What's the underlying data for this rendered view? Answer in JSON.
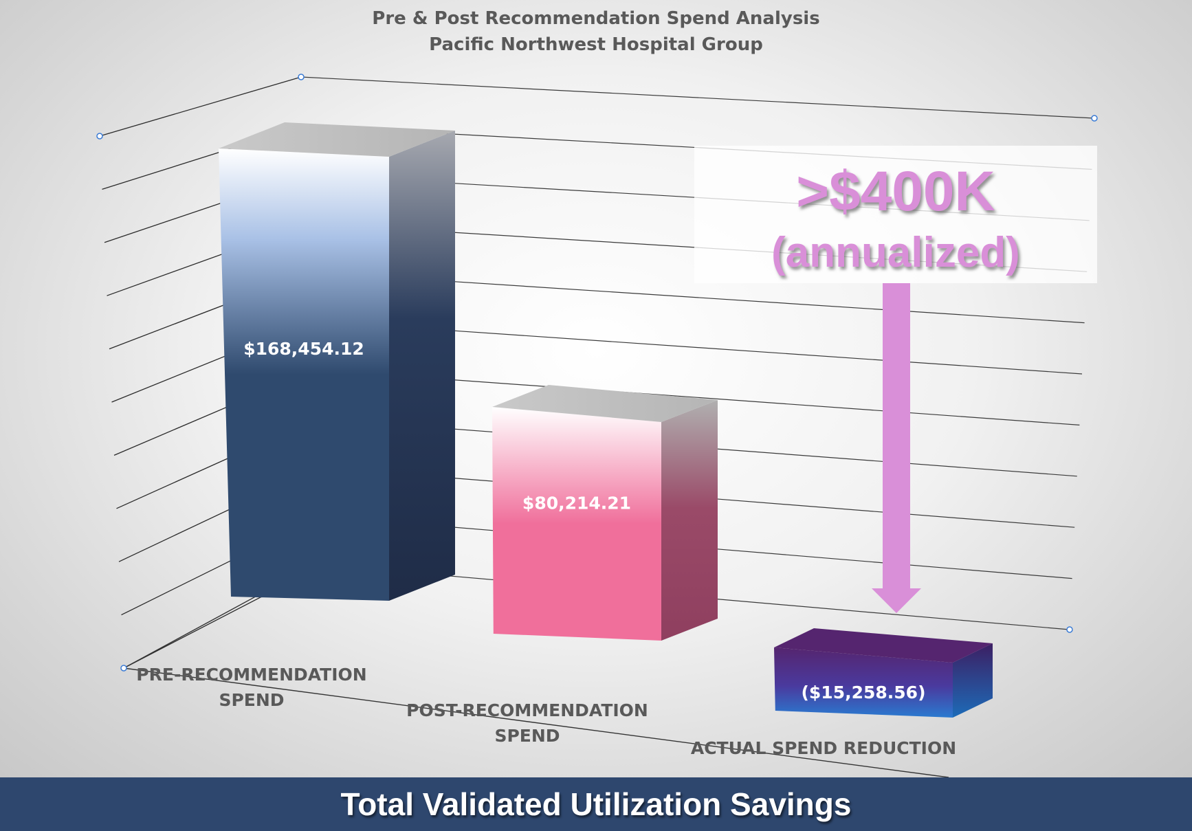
{
  "chart_data": {
    "type": "bar",
    "title": "Pre & Post Recommendation Spend Analysis",
    "subtitle": "Pacific Northwest Hospital Group",
    "categories": [
      "PRE-RECOMMENDATION SPEND",
      "POST-RECOMMENDATION SPEND",
      "ACTUAL SPEND REDUCTION"
    ],
    "category_lines": [
      [
        "PRE-RECOMMENDATION",
        "SPEND"
      ],
      [
        "POST-RECOMMENDATION",
        "SPEND"
      ],
      [
        "ACTUAL SPEND REDUCTION"
      ]
    ],
    "values": [
      168454.12,
      80214.21,
      -15258.56
    ],
    "data_labels": [
      "$168,454.12",
      "$80,214.21",
      "($15,258.56)"
    ],
    "bar_colors": [
      "#2f4a6e",
      "#f06f9b",
      "#55256f"
    ],
    "ylim": [
      0,
      200000
    ],
    "grid": true,
    "legend": false,
    "style": "3d-column"
  },
  "callout": {
    "value": ">$400K",
    "note": "(annualized)",
    "color": "#d98fd8"
  },
  "banner": {
    "text": "Total Validated Utilization Savings",
    "color": "#2e476e"
  }
}
